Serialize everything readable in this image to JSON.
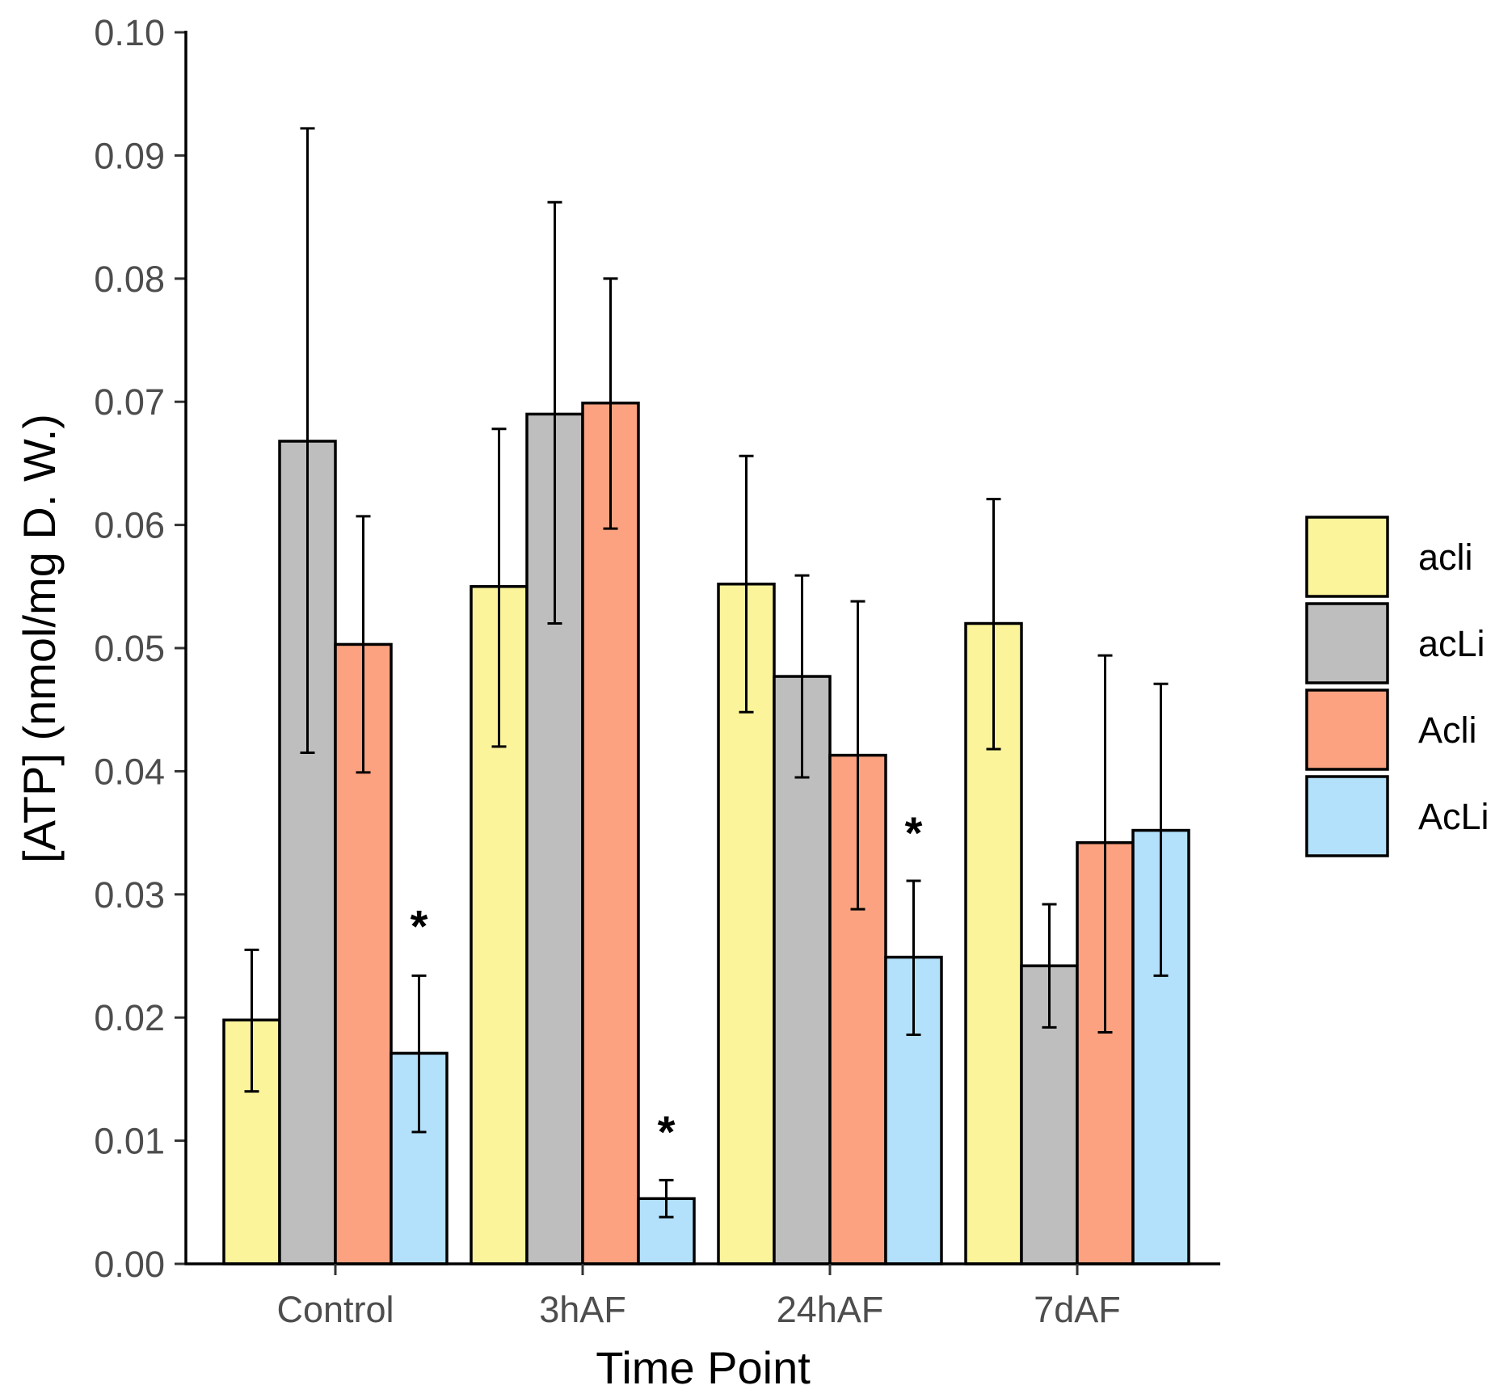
{
  "chart_data": {
    "type": "bar",
    "title": "",
    "xlabel": "Time Point",
    "ylabel": "[ATP] (nmol/mg D. W.)",
    "ylim": [
      0,
      0.1
    ],
    "yticks": [
      "0.00",
      "0.01",
      "0.02",
      "0.03",
      "0.04",
      "0.05",
      "0.06",
      "0.07",
      "0.08",
      "0.09",
      "0.10"
    ],
    "categories": [
      "Control",
      "3hAF",
      "24hAF",
      "7dAF"
    ],
    "legend_position": "right",
    "series": [
      {
        "name": "acli",
        "color": "#fbf49b",
        "values": [
          0.0198,
          0.055,
          0.0552,
          0.052
        ],
        "err_low": [
          0.014,
          0.042,
          0.0448,
          0.0418
        ],
        "err_high": [
          0.0255,
          0.0678,
          0.0656,
          0.0621
        ]
      },
      {
        "name": "acLi",
        "color": "#bebebe",
        "values": [
          0.0668,
          0.069,
          0.0477,
          0.0242
        ],
        "err_low": [
          0.0415,
          0.052,
          0.0395,
          0.0192
        ],
        "err_high": [
          0.0922,
          0.0862,
          0.0559,
          0.0292
        ]
      },
      {
        "name": "Acli",
        "color": "#fca280",
        "values": [
          0.0503,
          0.0699,
          0.0413,
          0.0342
        ],
        "err_low": [
          0.0399,
          0.0597,
          0.0288,
          0.0188
        ],
        "err_high": [
          0.0607,
          0.08,
          0.0538,
          0.0494
        ]
      },
      {
        "name": "AcLi",
        "color": "#b3e0fb",
        "values": [
          0.0171,
          0.0053,
          0.0249,
          0.0352
        ],
        "err_low": [
          0.0107,
          0.0038,
          0.0186,
          0.0234
        ],
        "err_high": [
          0.0234,
          0.0068,
          0.0311,
          0.0471
        ]
      }
    ],
    "annotations": [
      {
        "text": "*",
        "category": "Control",
        "series": "AcLi",
        "y": 0.0285
      },
      {
        "text": "*",
        "category": "3hAF",
        "series": "AcLi",
        "y": 0.0118
      },
      {
        "text": "*",
        "category": "24hAF",
        "series": "AcLi",
        "y": 0.0361
      }
    ]
  }
}
